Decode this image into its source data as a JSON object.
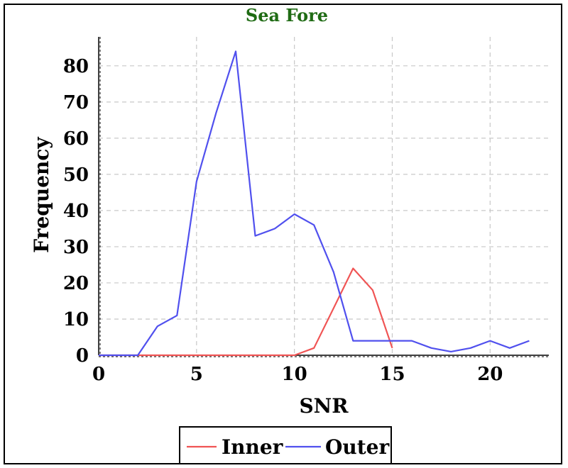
{
  "chart_data": {
    "type": "line",
    "title": "Sea Fore",
    "xlabel": "SNR",
    "ylabel": "Frequency",
    "xlim": [
      0,
      23
    ],
    "ylim": [
      0,
      88
    ],
    "xticks": [
      0,
      5,
      10,
      15,
      20
    ],
    "yticks": [
      0,
      10,
      20,
      30,
      40,
      50,
      60,
      70,
      80
    ],
    "grid": true,
    "legend_position": "bottom-center",
    "series": [
      {
        "name": "Inner",
        "color": "#f05454",
        "x": [
          0,
          1,
          2,
          3,
          4,
          5,
          6,
          7,
          8,
          9,
          10,
          11,
          12,
          13,
          14,
          15
        ],
        "y": [
          0,
          0,
          0,
          0,
          0,
          0,
          0,
          0,
          0,
          0,
          0,
          2,
          13,
          24,
          18,
          2
        ]
      },
      {
        "name": "Outer",
        "color": "#5050ee",
        "x": [
          0,
          1,
          2,
          3,
          4,
          5,
          6,
          7,
          8,
          9,
          10,
          11,
          12,
          13,
          14,
          15,
          16,
          17,
          18,
          19,
          20,
          21,
          22
        ],
        "y": [
          0,
          0,
          0,
          8,
          11,
          48,
          67,
          84,
          33,
          35,
          39,
          36,
          23,
          4,
          4,
          4,
          4,
          2,
          1,
          2,
          4,
          2,
          4
        ]
      }
    ]
  }
}
